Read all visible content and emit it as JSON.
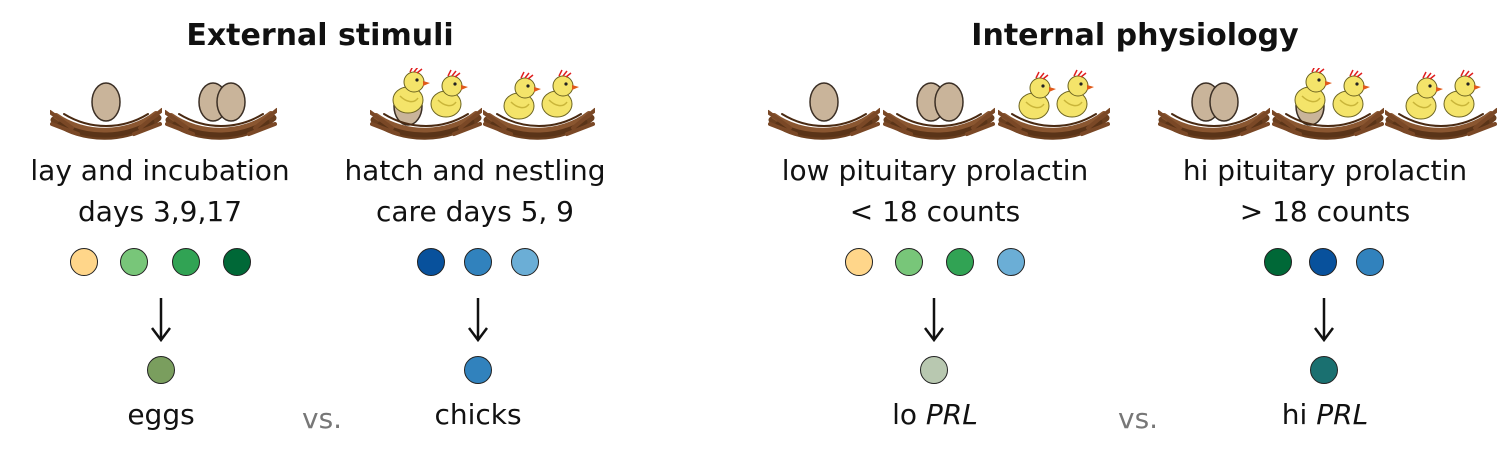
{
  "left": {
    "title": "External stimuli",
    "group1": {
      "label_line1": "lay and incubation",
      "label_line2": "days 3,9,17",
      "outcome": "eggs",
      "dot_colors": [
        "#FFD68A",
        "#78C679",
        "#31A354",
        "#006837"
      ],
      "outcome_color": "#7A9E5E"
    },
    "group2": {
      "label_line1": "hatch and nestling",
      "label_line2": "care days 5, 9",
      "outcome": "chicks",
      "dot_colors": [
        "#08519C",
        "#3182BD",
        "#6BAED6"
      ],
      "outcome_color": "#3182BD"
    },
    "vs": "vs."
  },
  "right": {
    "title": "Internal physiology",
    "group1": {
      "label_line1": "low pituitary prolactin",
      "label_line2": "< 18 counts",
      "outcome_prefix": "lo ",
      "outcome_gene": "PRL",
      "dot_colors": [
        "#FFD68A",
        "#78C679",
        "#31A354",
        "#6BAED6"
      ],
      "outcome_color": "#B8C8B0"
    },
    "group2": {
      "label_line1": "hi pituitary prolactin",
      "label_line2": "> 18 counts",
      "outcome_prefix": "hi ",
      "outcome_gene": "PRL",
      "dot_colors": [
        "#006837",
        "#08519C",
        "#3182BD"
      ],
      "outcome_color": "#1A7070"
    },
    "vs": "vs."
  },
  "nests": {
    "left": [
      "one-egg",
      "two-eggs",
      "chick-hatching",
      "two-chicks"
    ],
    "right": [
      "one-egg",
      "two-eggs",
      "two-chicks",
      "two-eggs",
      "chick-hatching",
      "two-chicks"
    ]
  }
}
